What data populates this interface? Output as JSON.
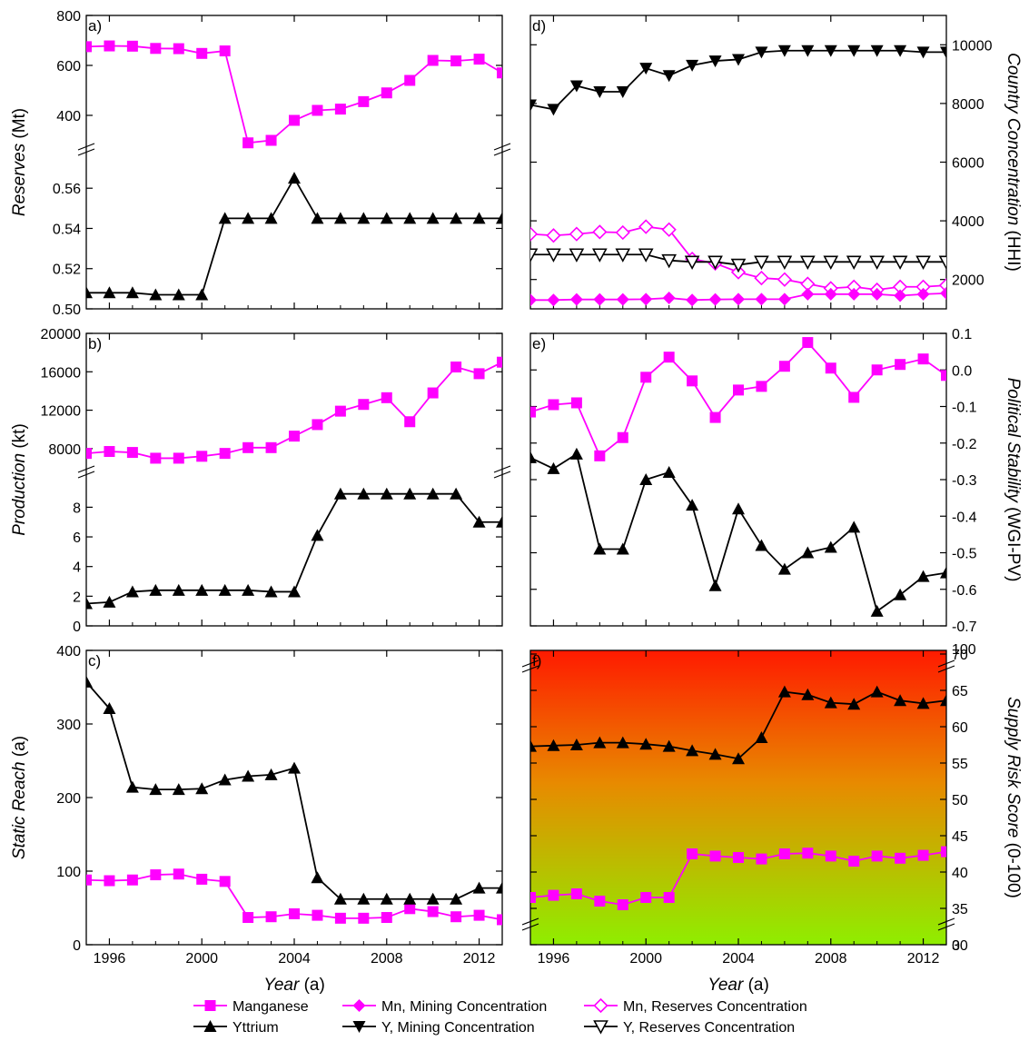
{
  "legend": {
    "position": "bottom",
    "entries": [
      {
        "label": "Manganese",
        "color": "#ff00ff",
        "marker": "square"
      },
      {
        "label": "Mn, Mining Concentration",
        "color": "#ff00ff",
        "marker": "diamond"
      },
      {
        "label": "Mn, Reserves Concentration",
        "color": "#ff00ff",
        "marker": "diamond-open"
      },
      {
        "label": "Yttrium",
        "color": "#000000",
        "marker": "triangle-up"
      },
      {
        "label": "Y, Mining Concentration",
        "color": "#000000",
        "marker": "triangle-down"
      },
      {
        "label": "Y, Reserves Concentration",
        "color": "#000000",
        "marker": "triangle-down-open"
      }
    ]
  },
  "colors": {
    "manganese": "#ff00ff",
    "yttrium": "#000000",
    "risk_high": "#ff1a00",
    "risk_mid": "#e88a00",
    "risk_low": "#8fee00"
  },
  "chart_data": [
    {
      "type": "line",
      "panel": "a)",
      "ylabel_italic": "Reserves",
      "ylabel_unit": " (Mt)",
      "xlabel_italic": "",
      "xlabel_unit": "",
      "xlim": [
        1995,
        2013
      ],
      "xticks": [
        1996,
        2000,
        2004,
        2008,
        2012
      ],
      "show_xticklabels": false,
      "axis_break": true,
      "upper": {
        "ylim": [
          280,
          800
        ],
        "yticks": [
          400,
          600,
          800
        ]
      },
      "lower": {
        "ylim": [
          0.5,
          0.575
        ],
        "yticks": [
          "0.50",
          "0.52",
          "0.54",
          "0.56"
        ]
      },
      "series": [
        {
          "name": "Manganese",
          "segment": "upper",
          "color": "#ff00ff",
          "marker": "square",
          "x": [
            1995,
            1996,
            1997,
            1998,
            1999,
            2000,
            2001,
            2002,
            2003,
            2004,
            2005,
            2006,
            2007,
            2008,
            2009,
            2010,
            2011,
            2012,
            2013
          ],
          "values": [
            675,
            678,
            677,
            668,
            667,
            648,
            658,
            290,
            300,
            380,
            420,
            425,
            455,
            490,
            540,
            620,
            618,
            625,
            570
          ]
        },
        {
          "name": "Yttrium",
          "segment": "lower",
          "color": "#000000",
          "marker": "triangle-up",
          "x": [
            1995,
            1996,
            1997,
            1998,
            1999,
            2000,
            2001,
            2002,
            2003,
            2004,
            2005,
            2006,
            2007,
            2008,
            2009,
            2010,
            2011,
            2012,
            2013
          ],
          "values": [
            0.508,
            0.508,
            0.508,
            0.507,
            0.507,
            0.507,
            0.545,
            0.545,
            0.545,
            0.565,
            0.545,
            0.545,
            0.545,
            0.545,
            0.545,
            0.545,
            0.545,
            0.545,
            0.545
          ]
        }
      ]
    },
    {
      "type": "line",
      "panel": "b)",
      "ylabel_italic": "Production",
      "ylabel_unit": " (kt)",
      "xlim": [
        1995,
        2013
      ],
      "xticks": [
        1996,
        2000,
        2004,
        2008,
        2012
      ],
      "show_xticklabels": false,
      "axis_break": true,
      "upper": {
        "ylim": [
          6000,
          20000
        ],
        "yticks": [
          8000,
          12000,
          16000,
          20000
        ]
      },
      "lower": {
        "ylim": [
          0,
          9.8
        ],
        "yticks": [
          0,
          2,
          4,
          6,
          8
        ]
      },
      "series": [
        {
          "name": "Manganese",
          "segment": "upper",
          "color": "#ff00ff",
          "marker": "square",
          "x": [
            1995,
            1996,
            1997,
            1998,
            1999,
            2000,
            2001,
            2002,
            2003,
            2004,
            2005,
            2006,
            2007,
            2008,
            2009,
            2010,
            2011,
            2012,
            2013
          ],
          "values": [
            7500,
            7700,
            7600,
            7000,
            7000,
            7200,
            7500,
            8100,
            8100,
            9300,
            10500,
            11900,
            12600,
            13300,
            10800,
            13800,
            16500,
            15800,
            17000
          ]
        },
        {
          "name": "Yttrium",
          "segment": "lower",
          "color": "#000000",
          "marker": "triangle-up",
          "x": [
            1995,
            1996,
            1997,
            1998,
            1999,
            2000,
            2001,
            2002,
            2003,
            2004,
            2005,
            2006,
            2007,
            2008,
            2009,
            2010,
            2011,
            2012,
            2013
          ],
          "values": [
            1.5,
            1.6,
            2.3,
            2.4,
            2.4,
            2.4,
            2.4,
            2.4,
            2.3,
            2.3,
            6.1,
            8.9,
            8.9,
            8.9,
            8.9,
            8.9,
            8.9,
            7.0,
            7.0
          ]
        }
      ]
    },
    {
      "type": "line",
      "panel": "c)",
      "ylabel_italic": "Static Reach",
      "ylabel_unit": " (a)",
      "xlabel_italic": "Year",
      "xlabel_unit": " (a)",
      "xlim": [
        1995,
        2013
      ],
      "xticks": [
        1996,
        2000,
        2004,
        2008,
        2012
      ],
      "show_xticklabels": true,
      "ylim": [
        0,
        400
      ],
      "yticks": [
        0,
        100,
        200,
        300,
        400
      ],
      "series": [
        {
          "name": "Manganese",
          "color": "#ff00ff",
          "marker": "square",
          "x": [
            1995,
            1996,
            1997,
            1998,
            1999,
            2000,
            2001,
            2002,
            2003,
            2004,
            2005,
            2006,
            2007,
            2008,
            2009,
            2010,
            2011,
            2012,
            2013
          ],
          "values": [
            88,
            87,
            88,
            95,
            96,
            89,
            86,
            37,
            38,
            42,
            40,
            36,
            36,
            37,
            49,
            45,
            38,
            40,
            34
          ]
        },
        {
          "name": "Yttrium",
          "color": "#000000",
          "marker": "triangle-up",
          "x": [
            1995,
            1996,
            1997,
            1998,
            1999,
            2000,
            2001,
            2002,
            2003,
            2004,
            2005,
            2006,
            2007,
            2008,
            2009,
            2010,
            2011,
            2012,
            2013
          ],
          "values": [
            357,
            321,
            214,
            211,
            211,
            212,
            224,
            229,
            231,
            240,
            91,
            62,
            62,
            62,
            62,
            62,
            62,
            77,
            77
          ]
        }
      ]
    },
    {
      "type": "line",
      "panel": "d)",
      "ylabel_italic": "Country Concentration",
      "ylabel_unit": " (HHI)",
      "xlim": [
        1995,
        2013
      ],
      "xticks": [
        1996,
        2000,
        2004,
        2008,
        2012
      ],
      "show_xticklabels": false,
      "ylim": [
        1000,
        11000
      ],
      "yticks": [
        2000,
        4000,
        6000,
        8000,
        10000
      ],
      "series": [
        {
          "name": "Y, Mining Concentration",
          "color": "#000000",
          "marker": "triangle-down",
          "x": [
            1995,
            1996,
            1997,
            1998,
            1999,
            2000,
            2001,
            2002,
            2003,
            2004,
            2005,
            2006,
            2007,
            2008,
            2009,
            2010,
            2011,
            2012,
            2013
          ],
          "values": [
            7950,
            7800,
            8600,
            8400,
            8400,
            9200,
            8950,
            9300,
            9450,
            9500,
            9750,
            9800,
            9800,
            9800,
            9800,
            9800,
            9800,
            9750,
            9750
          ]
        },
        {
          "name": "Mn, Reserves Concentration",
          "color": "#ff00ff",
          "marker": "diamond-open",
          "x": [
            1995,
            1996,
            1997,
            1998,
            1999,
            2000,
            2001,
            2002,
            2003,
            2004,
            2005,
            2006,
            2007,
            2008,
            2009,
            2010,
            2011,
            2012,
            2013
          ],
          "values": [
            3550,
            3500,
            3550,
            3620,
            3600,
            3800,
            3700,
            2700,
            2550,
            2250,
            2050,
            2000,
            1850,
            1700,
            1750,
            1650,
            1750,
            1750,
            1800
          ]
        },
        {
          "name": "Y, Reserves Concentration",
          "color": "#000000",
          "marker": "triangle-down-open",
          "x": [
            1995,
            1996,
            1997,
            1998,
            1999,
            2000,
            2001,
            2002,
            2003,
            2004,
            2005,
            2006,
            2007,
            2008,
            2009,
            2010,
            2011,
            2012,
            2013
          ],
          "values": [
            2850,
            2850,
            2850,
            2850,
            2850,
            2850,
            2650,
            2600,
            2600,
            2500,
            2600,
            2600,
            2600,
            2600,
            2600,
            2600,
            2600,
            2600,
            2600
          ]
        },
        {
          "name": "Mn, Mining Concentration",
          "color": "#ff00ff",
          "marker": "diamond",
          "x": [
            1995,
            1996,
            1997,
            1998,
            1999,
            2000,
            2001,
            2002,
            2003,
            2004,
            2005,
            2006,
            2007,
            2008,
            2009,
            2010,
            2011,
            2012,
            2013
          ],
          "values": [
            1300,
            1300,
            1320,
            1320,
            1320,
            1330,
            1370,
            1300,
            1320,
            1330,
            1330,
            1330,
            1500,
            1500,
            1500,
            1500,
            1450,
            1500,
            1530
          ]
        }
      ]
    },
    {
      "type": "line",
      "panel": "e)",
      "ylabel_italic": "Political Stability",
      "ylabel_unit": " (WGI-PV)",
      "xlim": [
        1995,
        2013
      ],
      "xticks": [
        1996,
        2000,
        2004,
        2008,
        2012
      ],
      "show_xticklabels": false,
      "ylim": [
        -0.7,
        0.1
      ],
      "yticks": [
        "0.1",
        "0.0",
        "-0.1",
        "-0.2",
        "-0.3",
        "-0.4",
        "-0.5",
        "-0.6",
        "-0.7"
      ],
      "series": [
        {
          "name": "Manganese",
          "color": "#ff00ff",
          "marker": "square",
          "x": [
            1995,
            1996,
            1997,
            1998,
            1999,
            2000,
            2001,
            2002,
            2003,
            2004,
            2005,
            2006,
            2007,
            2008,
            2009,
            2010,
            2011,
            2012,
            2013
          ],
          "values": [
            -0.115,
            -0.095,
            -0.09,
            -0.235,
            -0.185,
            -0.02,
            0.035,
            -0.03,
            -0.13,
            -0.055,
            -0.045,
            0.01,
            0.075,
            0.005,
            -0.075,
            0.0,
            0.015,
            0.03,
            -0.015
          ]
        },
        {
          "name": "Yttrium",
          "color": "#000000",
          "marker": "triangle-up",
          "x": [
            1995,
            1996,
            1997,
            1998,
            1999,
            2000,
            2001,
            2002,
            2003,
            2004,
            2005,
            2006,
            2007,
            2008,
            2009,
            2010,
            2011,
            2012,
            2013
          ],
          "values": [
            -0.24,
            -0.27,
            -0.23,
            -0.49,
            -0.49,
            -0.3,
            -0.28,
            -0.37,
            -0.59,
            -0.38,
            -0.48,
            -0.545,
            -0.5,
            -0.485,
            -0.43,
            -0.66,
            -0.615,
            -0.565,
            -0.555
          ]
        }
      ]
    },
    {
      "type": "line",
      "panel": "f)",
      "ylabel_italic": "Supply Risk Score",
      "ylabel_unit": " (0-100)",
      "xlabel_italic": "Year",
      "xlabel_unit": " (a)",
      "xlim": [
        1995,
        2013
      ],
      "xticks": [
        1996,
        2000,
        2004,
        2008,
        2012
      ],
      "show_xticklabels": true,
      "ylim": [
        30,
        70.5
      ],
      "yticks": [
        30,
        35,
        40,
        45,
        50,
        55,
        60,
        65,
        70
      ],
      "axis_break_labels": {
        "top": "100",
        "bottom": "0"
      },
      "background": "gradient red (high risk) to green (low risk)",
      "series": [
        {
          "name": "Manganese",
          "color": "#ff00ff",
          "marker": "square",
          "x": [
            1995,
            1996,
            1997,
            1998,
            1999,
            2000,
            2001,
            2002,
            2003,
            2004,
            2005,
            2006,
            2007,
            2008,
            2009,
            2010,
            2011,
            2012,
            2013
          ],
          "values": [
            36.5,
            36.8,
            37,
            36,
            35.5,
            36.5,
            36.5,
            42.5,
            42.2,
            42,
            41.8,
            42.5,
            42.6,
            42.2,
            41.5,
            42.2,
            41.9,
            42.3,
            42.8
          ]
        },
        {
          "name": "Yttrium",
          "color": "#000000",
          "marker": "triangle-up",
          "x": [
            1995,
            1996,
            1997,
            1998,
            1999,
            2000,
            2001,
            2002,
            2003,
            2004,
            2005,
            2006,
            2007,
            2008,
            2009,
            2010,
            2011,
            2012,
            2013
          ],
          "values": [
            57.3,
            57.4,
            57.5,
            57.8,
            57.8,
            57.6,
            57.3,
            56.7,
            56.2,
            55.6,
            58.5,
            64.8,
            64.4,
            63.3,
            63.1,
            64.8,
            63.6,
            63.2,
            63.6
          ]
        }
      ]
    }
  ]
}
